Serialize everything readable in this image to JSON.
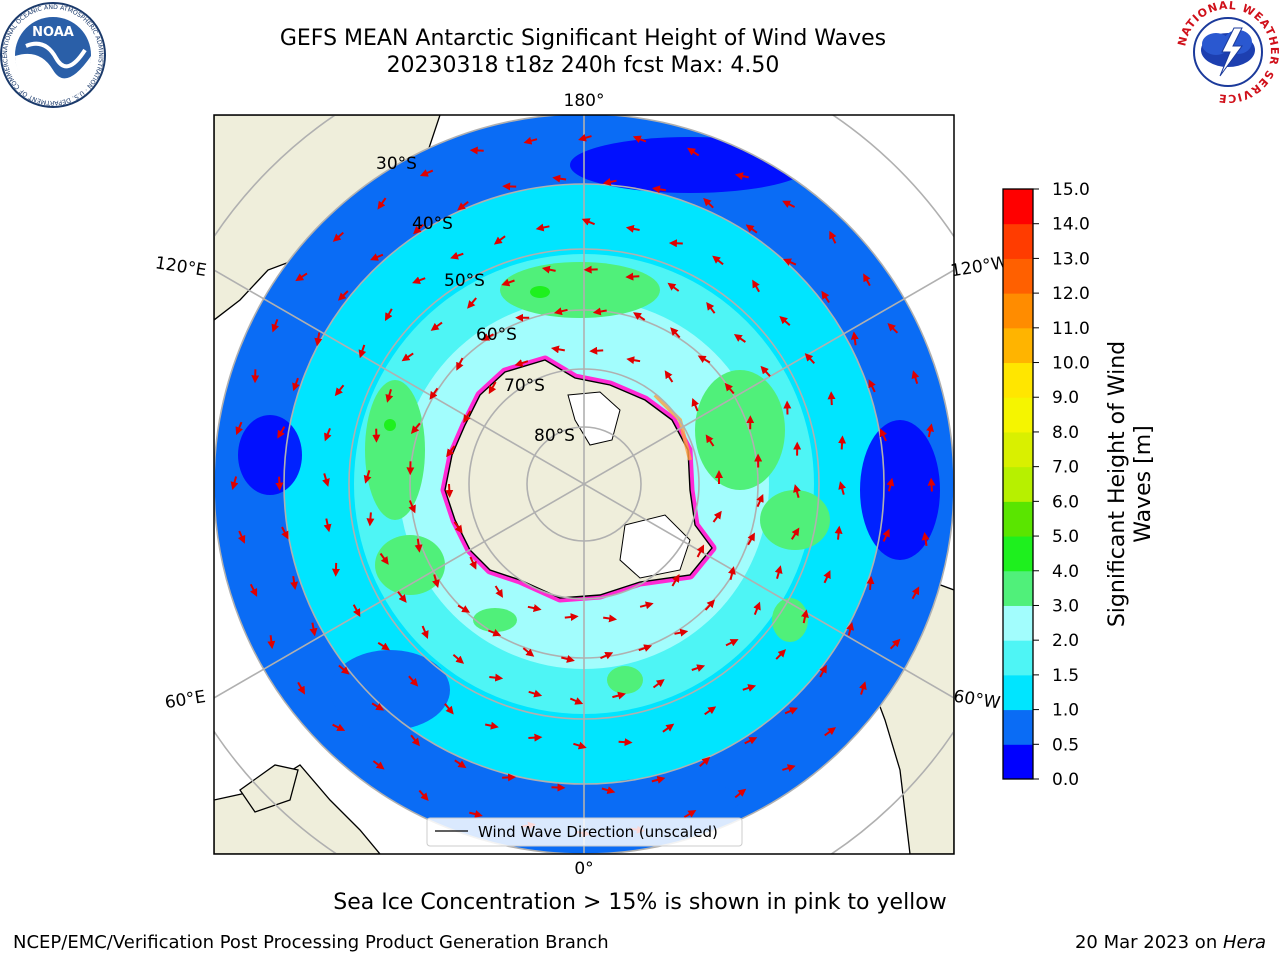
{
  "title": {
    "line1": "GEFS MEAN Antarctic Significant Height of Wind Waves",
    "line2": "20230318 t18z 240h fcst   Max: 4.50"
  },
  "map": {
    "projection": "south-polar-stereographic",
    "longitude_labels": {
      "top": "180°",
      "bottom": "0°",
      "upper_left": "120°E",
      "upper_right": "120°W",
      "lower_left": "60°E",
      "lower_right": "60°W"
    },
    "latitude_labels": [
      "30°S",
      "40°S",
      "50°S",
      "60°S",
      "70°S",
      "80°S"
    ],
    "legend_label": "Wind Wave Direction (unscaled)",
    "arrow_color": "#e00000",
    "land_color": "#efeedb",
    "antarctic_ice_color": "#ffffff"
  },
  "colorbar": {
    "label": "Significant Height of Wind Waves [m]",
    "label_line1": "Significant Height of Wind",
    "label_line2": "Waves [m]",
    "ticks": [
      "0.0",
      "0.5",
      "1.0",
      "1.5",
      "2.0",
      "3.0",
      "4.0",
      "5.0",
      "6.0",
      "7.0",
      "8.0",
      "9.0",
      "10.0",
      "11.0",
      "12.0",
      "13.0",
      "14.0",
      "15.0"
    ],
    "colors": [
      "#0000ff",
      "#0a6cf5",
      "#00e5ff",
      "#4ef5f5",
      "#a2fdfd",
      "#50f07a",
      "#1ef01e",
      "#5ae500",
      "#b7f000",
      "#d9f000",
      "#f5f500",
      "#ffe600",
      "#ffb400",
      "#ff8c00",
      "#ff6000",
      "#ff3c00",
      "#ff0000"
    ]
  },
  "caption": "Sea Ice Concentration > 15% is shown in pink to yellow",
  "footer": {
    "left": "NCEP/EMC/Verification Post Processing Product Generation Branch",
    "right_date": "20 Mar 2023 on ",
    "right_host": "Hera"
  },
  "logos": {
    "noaa_text": "NOAA",
    "noaa_ring_text": "NATIONAL OCEANIC AND ATMOSPHERIC ADMINISTRATION · U.S. DEPARTMENT OF COMMERCE",
    "nws_ring_text": "NATIONAL WEATHER SERVICE"
  }
}
